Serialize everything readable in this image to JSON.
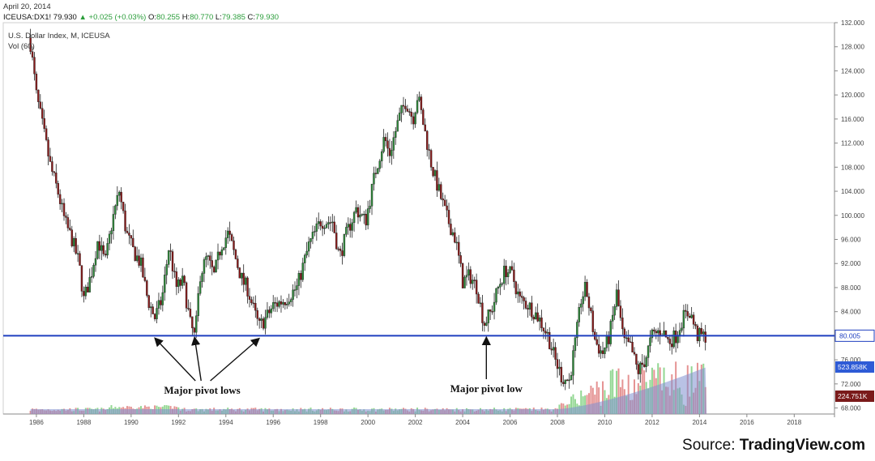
{
  "header": {
    "date": "April 20, 2014",
    "symbol": "ICEUSA:DX1!",
    "last": "79.930",
    "arrow": "▲",
    "change": "+0.025 (+0.03%)",
    "ohlc": [
      {
        "label": "O:",
        "value": "80.255"
      },
      {
        "label": "H:",
        "value": "80.770"
      },
      {
        "label": "L:",
        "value": "79.385"
      },
      {
        "label": "C:",
        "value": "79.930"
      }
    ]
  },
  "legend": {
    "title": "U.S. Dollar Index, M, ICEUSA",
    "volume": "Vol (60)"
  },
  "source": {
    "prefix": "Source: ",
    "name": "TradingView.com"
  },
  "colors": {
    "up": "#2e8b3a",
    "down": "#8b1a1a",
    "support_line": "#1f3fbf",
    "vol_up": "#7fd07f",
    "vol_down": "#e08080",
    "vol_ma": "#7f8fd0"
  },
  "chart_data": {
    "type": "candlestick",
    "frequency": "monthly",
    "x_tick_labels": [
      "1986",
      "1988",
      "1990",
      "1992",
      "1994",
      "1996",
      "1998",
      "2000",
      "2002",
      "2004",
      "2006",
      "2008",
      "2010",
      "2012",
      "2014",
      "2016",
      "2018"
    ],
    "y_tick_labels": [
      "68.000",
      "72.000",
      "76.000",
      "80.000",
      "84.000",
      "88.000",
      "92.000",
      "96.000",
      "100.000",
      "104.000",
      "108.000",
      "112.000",
      "116.000",
      "120.000",
      "124.000",
      "128.000",
      "132.000"
    ],
    "ylim": [
      67,
      132
    ],
    "xlim": [
      1984.6,
      2019.7
    ],
    "price_path": [
      [
        1985.75,
        128.5
      ],
      [
        1986.0,
        120.0
      ],
      [
        1986.3,
        114.0
      ],
      [
        1986.6,
        108.0
      ],
      [
        1986.9,
        104.0
      ],
      [
        1987.2,
        99.0
      ],
      [
        1987.5,
        96.0
      ],
      [
        1987.8,
        92.0
      ],
      [
        1988.0,
        86.0
      ],
      [
        1988.3,
        90.0
      ],
      [
        1988.6,
        96.0
      ],
      [
        1988.9,
        92.0
      ],
      [
        1989.2,
        99.0
      ],
      [
        1989.5,
        104.0
      ],
      [
        1989.8,
        97.0
      ],
      [
        1990.1,
        94.0
      ],
      [
        1990.4,
        92.0
      ],
      [
        1990.7,
        86.0
      ],
      [
        1991.0,
        83.0
      ],
      [
        1991.3,
        86.0
      ],
      [
        1991.6,
        95.0
      ],
      [
        1991.9,
        88.0
      ],
      [
        1992.2,
        89.0
      ],
      [
        1992.5,
        82.0
      ],
      [
        1992.7,
        79.5
      ],
      [
        1992.9,
        90.0
      ],
      [
        1993.2,
        93.0
      ],
      [
        1993.5,
        90.0
      ],
      [
        1993.8,
        95.0
      ],
      [
        1994.1,
        97.0
      ],
      [
        1994.4,
        93.0
      ],
      [
        1994.7,
        89.0
      ],
      [
        1994.9,
        88.0
      ],
      [
        1995.2,
        84.0
      ],
      [
        1995.4,
        81.5
      ],
      [
        1995.7,
        83.0
      ],
      [
        1996.0,
        85.0
      ],
      [
        1996.5,
        86.0
      ],
      [
        1997.0,
        88.0
      ],
      [
        1997.5,
        95.0
      ],
      [
        1998.0,
        99.0
      ],
      [
        1998.5,
        99.0
      ],
      [
        1998.8,
        93.0
      ],
      [
        1999.1,
        97.0
      ],
      [
        1999.5,
        101.0
      ],
      [
        1999.9,
        99.0
      ],
      [
        2000.3,
        107.0
      ],
      [
        2000.7,
        113.0
      ],
      [
        2000.9,
        110.0
      ],
      [
        2001.3,
        116.0
      ],
      [
        2001.6,
        119.0
      ],
      [
        2001.9,
        116.0
      ],
      [
        2002.1,
        120.0
      ],
      [
        2002.4,
        114.0
      ],
      [
        2002.7,
        108.0
      ],
      [
        2003.0,
        104.0
      ],
      [
        2003.3,
        100.0
      ],
      [
        2003.7,
        96.0
      ],
      [
        2004.0,
        89.0
      ],
      [
        2004.3,
        90.0
      ],
      [
        2004.6,
        88.0
      ],
      [
        2004.9,
        82.0
      ],
      [
        2005.2,
        84.0
      ],
      [
        2005.5,
        88.0
      ],
      [
        2005.8,
        91.0
      ],
      [
        2006.1,
        90.0
      ],
      [
        2006.4,
        86.0
      ],
      [
        2006.8,
        85.0
      ],
      [
        2007.2,
        83.0
      ],
      [
        2007.6,
        80.0
      ],
      [
        2007.9,
        76.0
      ],
      [
        2008.2,
        73.0
      ],
      [
        2008.5,
        72.5
      ],
      [
        2008.8,
        80.0
      ],
      [
        2009.0,
        86.0
      ],
      [
        2009.2,
        88.0
      ],
      [
        2009.6,
        79.0
      ],
      [
        2009.9,
        77.0
      ],
      [
        2010.2,
        80.0
      ],
      [
        2010.5,
        87.0
      ],
      [
        2010.8,
        79.0
      ],
      [
        2011.1,
        78.0
      ],
      [
        2011.4,
        74.0
      ],
      [
        2011.7,
        76.0
      ],
      [
        2012.0,
        80.0
      ],
      [
        2012.4,
        81.0
      ],
      [
        2012.7,
        79.0
      ],
      [
        2013.0,
        80.0
      ],
      [
        2013.3,
        83.0
      ],
      [
        2013.6,
        84.0
      ],
      [
        2013.9,
        80.0
      ],
      [
        2014.3,
        79.9
      ]
    ],
    "support_level": 80.005,
    "support_label": "80.005",
    "volume_labels": [
      {
        "label": "523.858K",
        "color": "#2e5bd6"
      },
      {
        "label": "224.751K",
        "color": "#7a1a1a"
      }
    ],
    "annotations": [
      {
        "text": "Major pivot lows",
        "x": 1993.0,
        "points": [
          1991.1,
          1992.7,
          1995.3
        ]
      },
      {
        "text": "Major pivot low",
        "x": 2005.0,
        "points": [
          2005.0
        ]
      }
    ]
  }
}
